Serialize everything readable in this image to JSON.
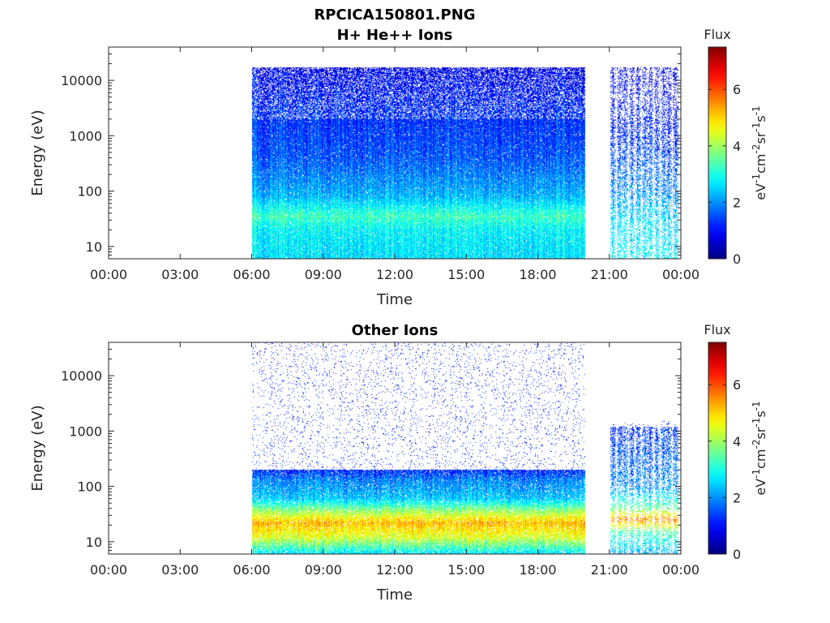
{
  "figure_title": "RPCICA150801.PNG",
  "colors": {
    "axis": "#262626",
    "colormap": "jet",
    "background": "#ffffff"
  },
  "chart_data": [
    {
      "type": "heatmap",
      "title": "H+ He++ Ions",
      "xlabel": "Time",
      "ylabel": "Energy (eV)",
      "x_ticks": [
        "00:00",
        "03:00",
        "06:00",
        "09:00",
        "12:00",
        "15:00",
        "18:00",
        "21:00",
        "00:00"
      ],
      "xlim_hours": [
        0,
        24
      ],
      "y_scale": "log",
      "ylim": [
        6,
        40000
      ],
      "y_ticks": [
        10,
        100,
        1000,
        10000
      ],
      "y_tick_labels": [
        "10",
        "100",
        "1000",
        "10000"
      ],
      "colorbar": {
        "title": "Flux",
        "label": "eV-1cm-2sr-1s-1",
        "label_parts": [
          [
            "eV",
            ""
          ],
          [
            "-1",
            "sup"
          ],
          [
            "cm",
            ""
          ],
          [
            "-2",
            "sup"
          ],
          [
            "sr",
            ""
          ],
          [
            "-1",
            "sup"
          ],
          [
            "s",
            ""
          ],
          [
            "-1",
            "sup"
          ]
        ],
        "range": [
          0,
          7.5
        ],
        "ticks": [
          0,
          2,
          4,
          6
        ]
      },
      "segments": [
        {
          "start_hour": 6.0,
          "end_hour": 20.0,
          "mode": "continuous",
          "profile": [
            [
              6,
              2.6
            ],
            [
              20,
              2.8
            ],
            [
              35,
              3.3
            ],
            [
              80,
              2.3
            ],
            [
              400,
              1.6
            ],
            [
              4000,
              1.2
            ],
            [
              15000,
              0.9
            ],
            [
              20000,
              0.3
            ],
            [
              40000,
              0.1
            ]
          ],
          "density": 0.95,
          "max_energy": 17000
        },
        {
          "start_hour": 21.0,
          "end_hour": 23.9,
          "mode": "bursts",
          "burst_count": 11,
          "profile": [
            [
              6,
              2.8
            ],
            [
              30,
              2.6
            ],
            [
              100,
              2.0
            ],
            [
              1000,
              1.3
            ],
            [
              15000,
              0.9
            ],
            [
              20000,
              0.1
            ]
          ],
          "density": 0.6,
          "max_energy": 17000
        }
      ]
    },
    {
      "type": "heatmap",
      "title": "Other Ions",
      "xlabel": "Time",
      "ylabel": "Energy (eV)",
      "x_ticks": [
        "00:00",
        "03:00",
        "06:00",
        "09:00",
        "12:00",
        "15:00",
        "18:00",
        "21:00",
        "00:00"
      ],
      "xlim_hours": [
        0,
        24
      ],
      "y_scale": "log",
      "ylim": [
        6,
        40000
      ],
      "y_ticks": [
        10,
        100,
        1000,
        10000
      ],
      "y_tick_labels": [
        "10",
        "100",
        "1000",
        "10000"
      ],
      "colorbar": {
        "title": "Flux",
        "label": "eV-1cm-2sr-1s-1",
        "label_parts": [
          [
            "eV",
            ""
          ],
          [
            "-1",
            "sup"
          ],
          [
            "cm",
            ""
          ],
          [
            "-2",
            "sup"
          ],
          [
            "sr",
            ""
          ],
          [
            "-1",
            "sup"
          ],
          [
            "s",
            ""
          ],
          [
            "-1",
            "sup"
          ]
        ],
        "range": [
          0,
          7.5
        ],
        "ticks": [
          0,
          2,
          4,
          6
        ]
      },
      "segments": [
        {
          "start_hour": 6.0,
          "end_hour": 20.0,
          "mode": "continuous",
          "profile": [
            [
              6,
              2.6
            ],
            [
              12,
              4.4
            ],
            [
              22,
              5.2
            ],
            [
              35,
              4.0
            ],
            [
              60,
              2.4
            ],
            [
              130,
              1.9
            ],
            [
              200,
              1.2
            ],
            [
              40000,
              1.0
            ]
          ],
          "density": 0.9,
          "sparse_above": 200,
          "max_energy": 40000
        },
        {
          "start_hour": 21.0,
          "end_hour": 23.9,
          "mode": "bursts",
          "burst_count": 11,
          "profile": [
            [
              6,
              2.2
            ],
            [
              15,
              3.4
            ],
            [
              25,
              5.6
            ],
            [
              40,
              3.6
            ],
            [
              100,
              2.0
            ],
            [
              1200,
              1.3
            ],
            [
              1500,
              0.2
            ]
          ],
          "density": 0.6,
          "sparse_above": 1200,
          "max_energy": 1500
        }
      ]
    }
  ]
}
